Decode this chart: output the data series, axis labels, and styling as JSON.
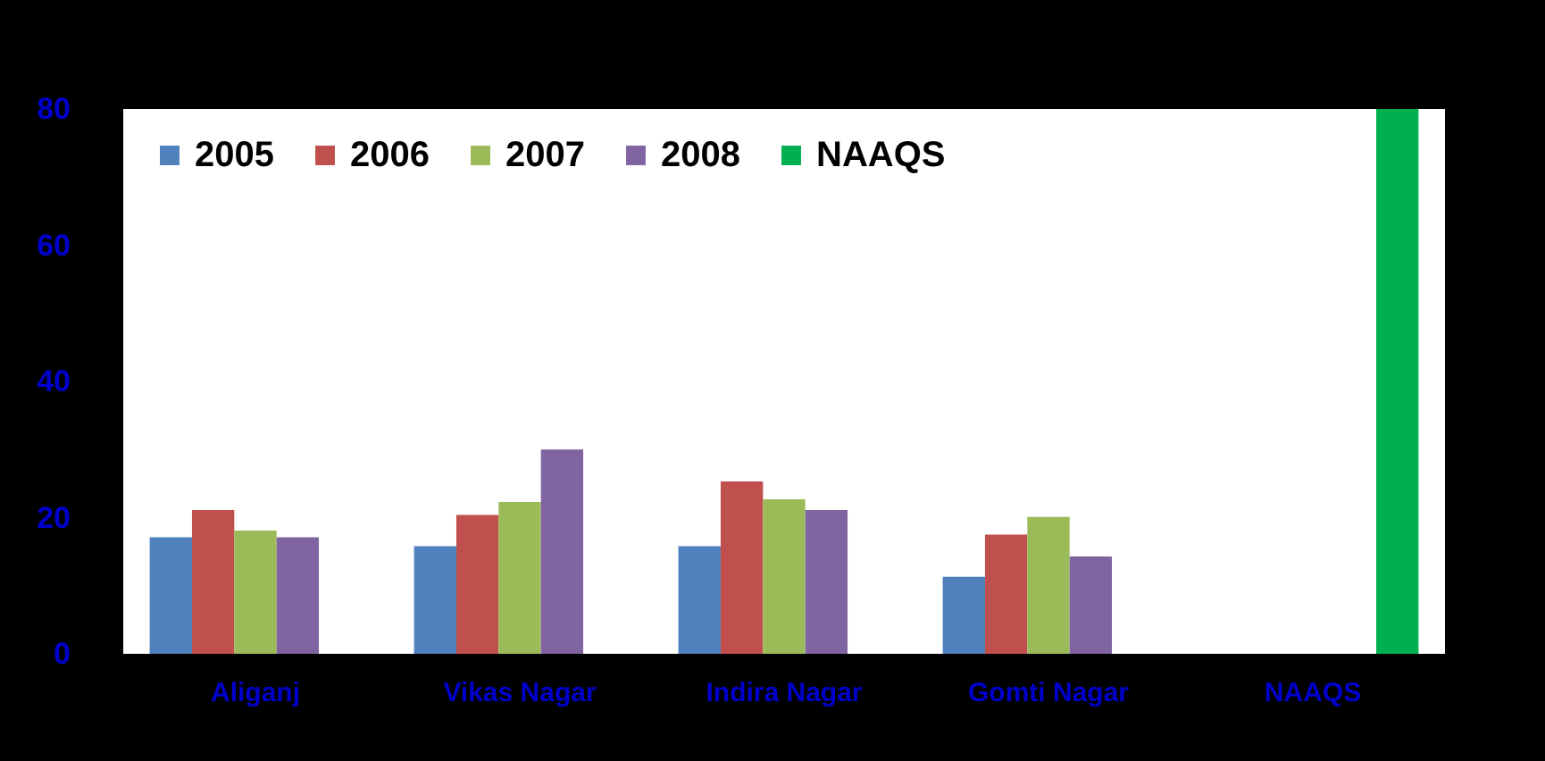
{
  "chart_data": {
    "type": "bar",
    "categories": [
      "Aliganj",
      "Vikas Nagar",
      "Indira Nagar",
      "Gomti Nagar",
      "NAAQS"
    ],
    "series": [
      {
        "name": "2005",
        "color": "#4f81bd",
        "values": [
          17.1,
          15.8,
          15.8,
          11.3,
          null
        ]
      },
      {
        "name": "2006",
        "color": "#c0504d",
        "values": [
          21.1,
          20.4,
          25.3,
          17.5,
          null
        ]
      },
      {
        "name": "2007",
        "color": "#9bbb59",
        "values": [
          18.1,
          22.3,
          22.7,
          20.1,
          null
        ]
      },
      {
        "name": "2008",
        "color": "#8064a2",
        "values": [
          17.1,
          30.0,
          21.1,
          14.3,
          null
        ]
      },
      {
        "name": "NAAQS",
        "color": "#00b050",
        "values": [
          null,
          null,
          null,
          null,
          80
        ]
      }
    ],
    "ylim": [
      0,
      80
    ],
    "yticks": [
      0,
      20,
      40,
      60,
      80
    ],
    "legend": "top left"
  }
}
